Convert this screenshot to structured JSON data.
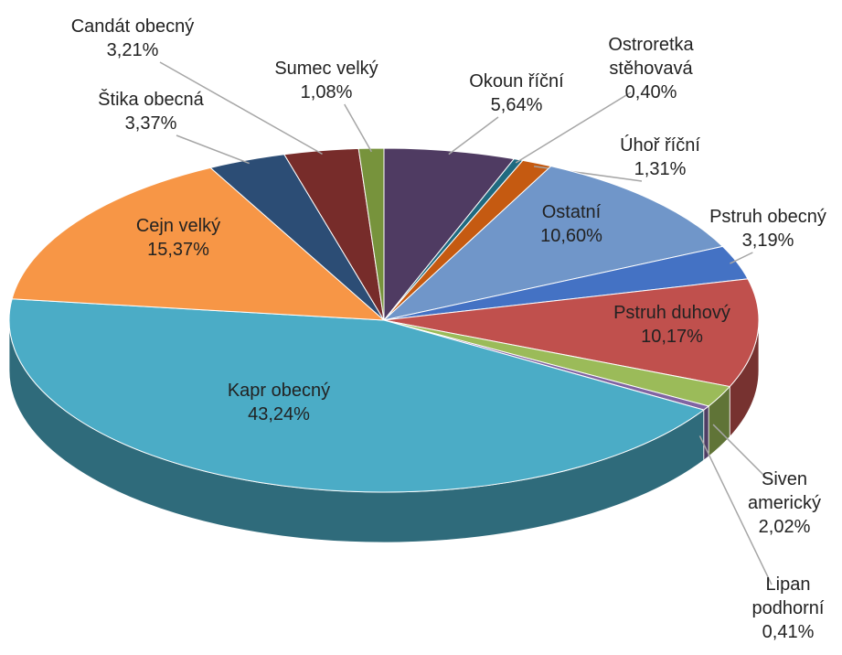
{
  "chart_data": {
    "type": "pie3d",
    "categories": [
      "Okoun říční",
      "Ostroretka stěhovavá",
      "Úhoř říční",
      "Ostatní",
      "Pstruh obecný",
      "Pstruh duhový",
      "Siven americký",
      "Lipan podhorní",
      "Kapr obecný",
      "Cejn velký",
      "Štika obecná",
      "Candát obecný",
      "Sumec velký"
    ],
    "values": [
      5.64,
      0.4,
      1.31,
      10.6,
      3.19,
      10.17,
      2.02,
      0.41,
      43.24,
      15.37,
      3.37,
      3.21,
      1.08
    ],
    "value_labels": [
      "5,64%",
      "0,40%",
      "1,31%",
      "10,60%",
      "3,19%",
      "10,17%",
      "2,02%",
      "0,41%",
      "43,24%",
      "15,37%",
      "3,37%",
      "3,21%",
      "1,08%"
    ],
    "colors": [
      "#4f3b62",
      "#1f6a80",
      "#c55a11",
      "#7096c9",
      "#4472c4",
      "#c0504d",
      "#9bbb59",
      "#8064a2",
      "#4bacc6",
      "#f79646",
      "#2c4d75",
      "#772c2a",
      "#77933c"
    ]
  }
}
